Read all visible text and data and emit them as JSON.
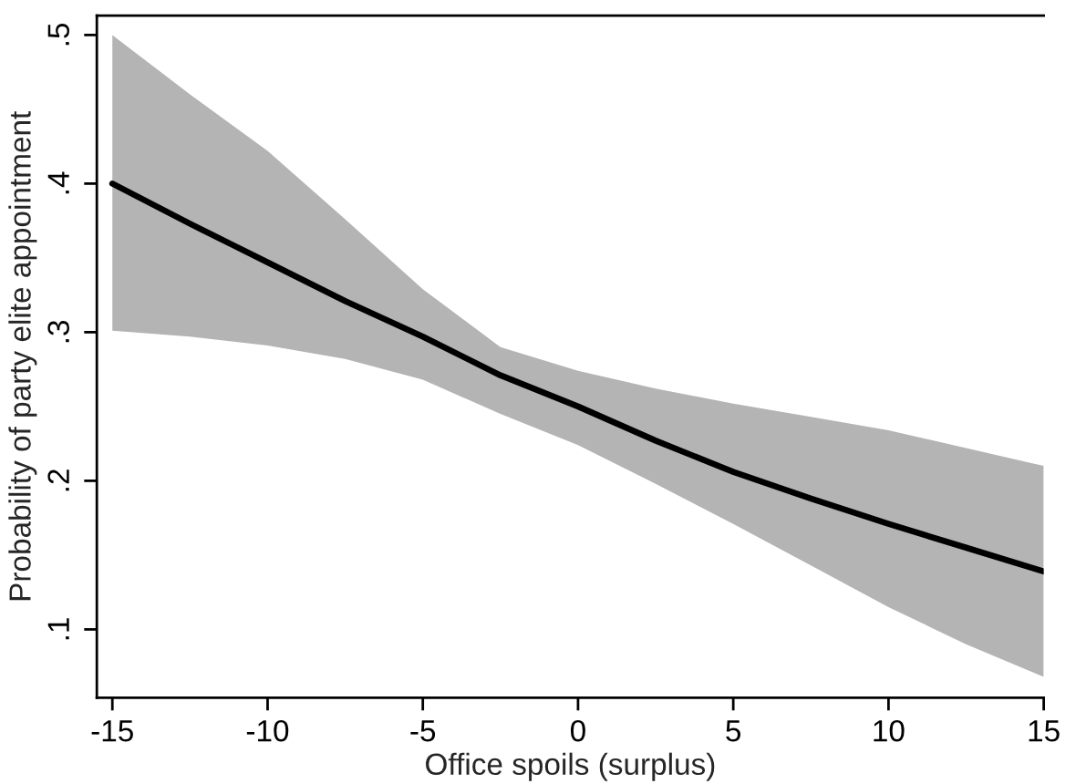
{
  "chart_data": {
    "type": "line",
    "xlabel": "Office spoils (surplus)",
    "ylabel": "Probability of party elite appointment",
    "x": [
      -15,
      -12.5,
      -10,
      -7.5,
      -5,
      -2.5,
      0,
      2.5,
      5,
      7.5,
      10,
      12.5,
      15
    ],
    "series": [
      {
        "color": "#000000",
        "values": [
          0.4,
          0.373,
          0.347,
          0.321,
          0.297,
          0.271,
          0.25,
          0.227,
          0.206,
          0.188,
          0.171,
          0.155,
          0.139
        ],
        "lower": [
          0.301,
          0.297,
          0.291,
          0.282,
          0.268,
          0.245,
          0.224,
          0.198,
          0.171,
          0.143,
          0.115,
          0.09,
          0.068
        ],
        "upper": [
          0.5,
          0.46,
          0.422,
          0.376,
          0.329,
          0.29,
          0.274,
          0.262,
          0.252,
          0.243,
          0.234,
          0.222,
          0.21
        ]
      }
    ],
    "xlim": [
      -15.5,
      15
    ],
    "ylim": [
      0.054,
      0.513
    ],
    "xticks": [
      -15,
      -10,
      -5,
      0,
      5,
      10,
      15
    ],
    "yticks": [
      {
        "value": 0.1,
        "label": ".1"
      },
      {
        "value": 0.2,
        "label": ".2"
      },
      {
        "value": 0.3,
        "label": ".3"
      },
      {
        "value": 0.4,
        "label": ".4"
      },
      {
        "value": 0.5,
        "label": ".5"
      }
    ],
    "grid": false,
    "legend": false,
    "line_style": "solid",
    "marker": "none"
  }
}
